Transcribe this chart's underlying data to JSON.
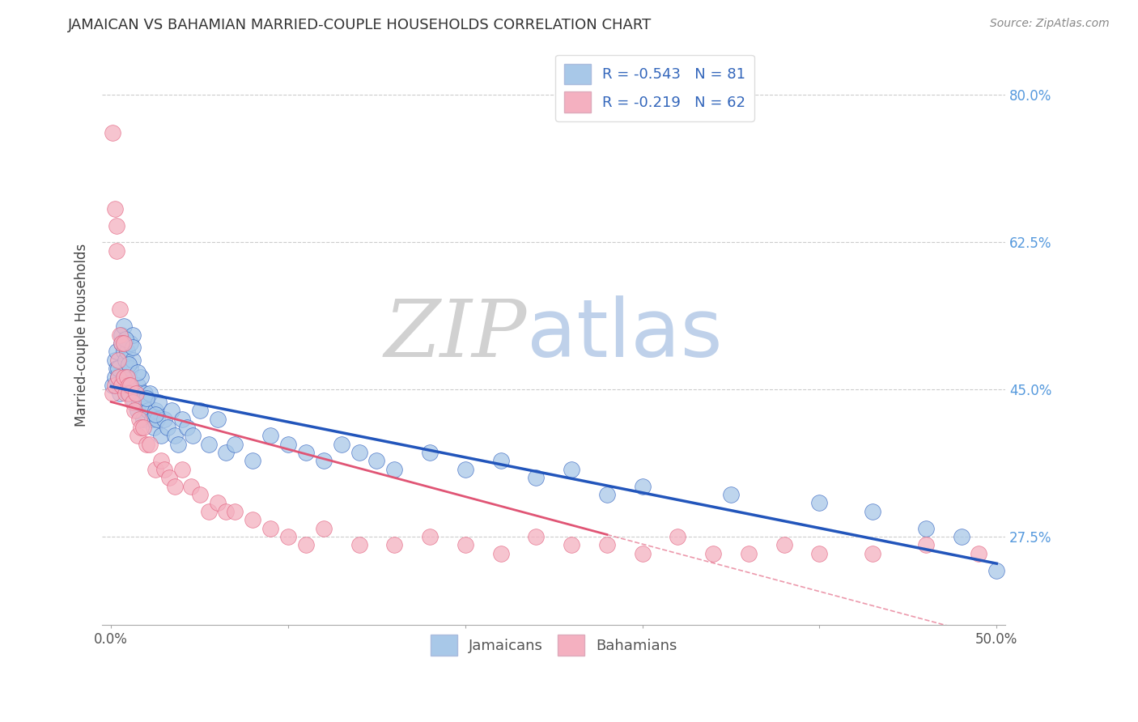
{
  "title": "JAMAICAN VS BAHAMIAN MARRIED-COUPLE HOUSEHOLDS CORRELATION CHART",
  "source": "Source: ZipAtlas.com",
  "ylabel": "Married-couple Households",
  "ytick_values": [
    0.275,
    0.45,
    0.625,
    0.8
  ],
  "ytick_labels": [
    "27.5%",
    "45.0%",
    "62.5%",
    "80.0%"
  ],
  "jamaican_color": "#a8c8e8",
  "bahamian_color": "#f4b0c0",
  "jamaican_line_color": "#2255bb",
  "bahamian_line_color": "#e05575",
  "watermark_zip": "ZIP",
  "watermark_atlas": "atlas",
  "jamaican_R": -0.543,
  "jamaican_N": 81,
  "bahamian_R": -0.219,
  "bahamian_N": 62,
  "xmin": 0.0,
  "xmax": 0.5,
  "ymin": 0.17,
  "ymax": 0.86,
  "jamaican_x": [
    0.001,
    0.002,
    0.002,
    0.003,
    0.003,
    0.004,
    0.004,
    0.005,
    0.005,
    0.006,
    0.006,
    0.007,
    0.007,
    0.008,
    0.008,
    0.009,
    0.009,
    0.01,
    0.01,
    0.011,
    0.011,
    0.012,
    0.012,
    0.013,
    0.014,
    0.015,
    0.015,
    0.016,
    0.017,
    0.018,
    0.019,
    0.02,
    0.021,
    0.022,
    0.023,
    0.024,
    0.025,
    0.026,
    0.027,
    0.028,
    0.03,
    0.032,
    0.034,
    0.036,
    0.038,
    0.04,
    0.043,
    0.046,
    0.05,
    0.055,
    0.06,
    0.065,
    0.07,
    0.08,
    0.09,
    0.1,
    0.11,
    0.12,
    0.13,
    0.14,
    0.15,
    0.16,
    0.18,
    0.2,
    0.22,
    0.24,
    0.26,
    0.28,
    0.3,
    0.35,
    0.4,
    0.43,
    0.46,
    0.48,
    0.5,
    0.008,
    0.01,
    0.012,
    0.015,
    0.02,
    0.025
  ],
  "jamaican_y": [
    0.455,
    0.465,
    0.485,
    0.475,
    0.495,
    0.465,
    0.475,
    0.445,
    0.455,
    0.505,
    0.515,
    0.495,
    0.525,
    0.455,
    0.485,
    0.465,
    0.495,
    0.445,
    0.465,
    0.475,
    0.505,
    0.485,
    0.515,
    0.435,
    0.445,
    0.425,
    0.455,
    0.435,
    0.465,
    0.415,
    0.445,
    0.435,
    0.425,
    0.445,
    0.415,
    0.405,
    0.425,
    0.415,
    0.435,
    0.395,
    0.415,
    0.405,
    0.425,
    0.395,
    0.385,
    0.415,
    0.405,
    0.395,
    0.425,
    0.385,
    0.415,
    0.375,
    0.385,
    0.365,
    0.395,
    0.385,
    0.375,
    0.365,
    0.385,
    0.375,
    0.365,
    0.355,
    0.375,
    0.355,
    0.365,
    0.345,
    0.355,
    0.325,
    0.335,
    0.325,
    0.315,
    0.305,
    0.285,
    0.275,
    0.235,
    0.51,
    0.48,
    0.5,
    0.47,
    0.44,
    0.42
  ],
  "bahamian_x": [
    0.001,
    0.001,
    0.002,
    0.002,
    0.003,
    0.003,
    0.004,
    0.004,
    0.005,
    0.005,
    0.006,
    0.006,
    0.007,
    0.007,
    0.008,
    0.009,
    0.01,
    0.01,
    0.011,
    0.012,
    0.013,
    0.014,
    0.015,
    0.016,
    0.017,
    0.018,
    0.02,
    0.022,
    0.025,
    0.028,
    0.03,
    0.033,
    0.036,
    0.04,
    0.045,
    0.05,
    0.055,
    0.06,
    0.065,
    0.07,
    0.08,
    0.09,
    0.1,
    0.11,
    0.12,
    0.14,
    0.16,
    0.18,
    0.2,
    0.22,
    0.24,
    0.26,
    0.28,
    0.3,
    0.32,
    0.34,
    0.36,
    0.38,
    0.4,
    0.43,
    0.46,
    0.49
  ],
  "bahamian_y": [
    0.755,
    0.445,
    0.665,
    0.455,
    0.615,
    0.645,
    0.485,
    0.465,
    0.545,
    0.515,
    0.505,
    0.455,
    0.465,
    0.505,
    0.445,
    0.465,
    0.455,
    0.445,
    0.455,
    0.435,
    0.425,
    0.445,
    0.395,
    0.415,
    0.405,
    0.405,
    0.385,
    0.385,
    0.355,
    0.365,
    0.355,
    0.345,
    0.335,
    0.355,
    0.335,
    0.325,
    0.305,
    0.315,
    0.305,
    0.305,
    0.295,
    0.285,
    0.275,
    0.265,
    0.285,
    0.265,
    0.265,
    0.275,
    0.265,
    0.255,
    0.275,
    0.265,
    0.265,
    0.255,
    0.275,
    0.255,
    0.255,
    0.265,
    0.255,
    0.255,
    0.265,
    0.255
  ]
}
